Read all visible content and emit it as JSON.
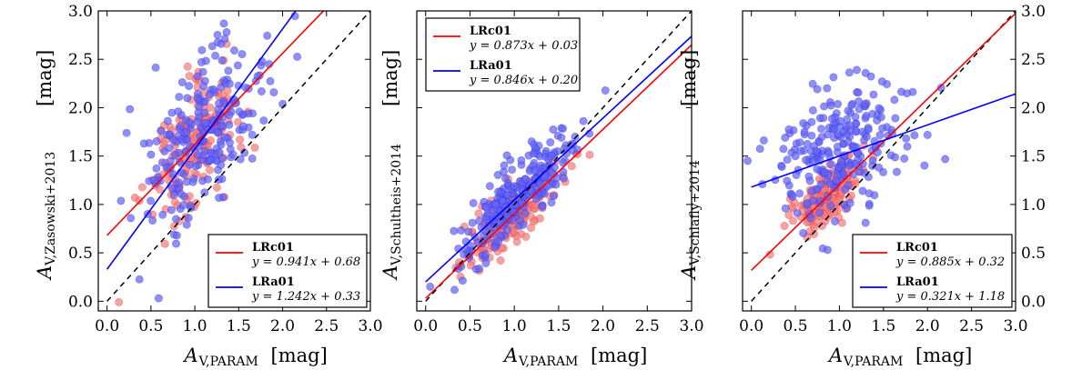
{
  "chart_data": [
    {
      "type": "scatter",
      "title": "",
      "xlabel": {
        "main": "A",
        "sub": "V,PARAM",
        "unit": "[mag]"
      },
      "ylabel": {
        "main": "A",
        "sub": "V,Zasowski+2013",
        "unit": "[mag]"
      },
      "xlim": [
        -0.1,
        3.0
      ],
      "ylim": [
        -0.1,
        3.0
      ],
      "xticks": [
        "0.0",
        "0.5",
        "1.0",
        "1.5",
        "2.0",
        "2.5",
        "3.0"
      ],
      "yticks": [
        "0.0",
        "0.5",
        "1.0",
        "1.5",
        "2.0",
        "2.5",
        "3.0"
      ],
      "ytick_side": "left",
      "legend": "bottom-right",
      "one_to_one": true,
      "series": [
        {
          "name": "LRc01",
          "equation": "y = 0.941x + 0.68",
          "slope": 0.941,
          "intercept": 0.68,
          "color": "#ff0000",
          "fill": "#f08080",
          "cx": 0.95,
          "cy": 1.55,
          "sx": 0.25,
          "sy": 0.38,
          "r": 0.6,
          "n": 170,
          "x_range": [
            0,
            2.5
          ]
        },
        {
          "name": "LRa01",
          "equation": "y = 1.242x + 0.33",
          "slope": 1.242,
          "intercept": 0.33,
          "color": "#0000ff",
          "fill": "#6464f0",
          "cx": 1.1,
          "cy": 1.75,
          "sx": 0.34,
          "sy": 0.46,
          "r": 0.55,
          "n": 230,
          "x_range": [
            0,
            2.17
          ]
        }
      ]
    },
    {
      "type": "scatter",
      "title": "",
      "xlabel": {
        "main": "A",
        "sub": "V,PARAM",
        "unit": "[mag]"
      },
      "ylabel": {
        "main": "A",
        "sub": "V,Schultheis+2014",
        "unit": "[mag]"
      },
      "xlim": [
        -0.1,
        3.0
      ],
      "ylim": [
        -0.1,
        3.0
      ],
      "xticks": [
        "0.0",
        "0.5",
        "1.0",
        "1.5",
        "2.0",
        "2.5",
        "3.0"
      ],
      "yticks": [],
      "ytick_side": "none",
      "legend": "top-left",
      "one_to_one": true,
      "series": [
        {
          "name": "LRc01",
          "equation": "y = 0.873x + 0.03",
          "slope": 0.873,
          "intercept": 0.03,
          "color": "#ff0000",
          "fill": "#f08080",
          "cx": 1.0,
          "cy": 0.9,
          "sx": 0.25,
          "sy": 0.25,
          "r": 0.8,
          "n": 200,
          "x_range": [
            0,
            3.0
          ]
        },
        {
          "name": "LRa01",
          "equation": "y = 0.846x + 0.20",
          "slope": 0.846,
          "intercept": 0.2,
          "color": "#0000ff",
          "fill": "#6464f0",
          "cx": 1.05,
          "cy": 1.1,
          "sx": 0.33,
          "sy": 0.33,
          "r": 0.85,
          "n": 260,
          "x_range": [
            0,
            3.0
          ]
        }
      ]
    },
    {
      "type": "scatter",
      "title": "",
      "xlabel": {
        "main": "A",
        "sub": "V,PARAM",
        "unit": "[mag]"
      },
      "ylabel": {
        "main": "A",
        "sub": "V,Schlafly+2014",
        "unit": "[mag]"
      },
      "xlim": [
        -0.1,
        3.0
      ],
      "ylim": [
        -0.1,
        3.0
      ],
      "xticks": [
        "0.0",
        "0.5",
        "1.0",
        "1.5",
        "2.0",
        "2.5",
        "3.0"
      ],
      "yticks": [
        "0.0",
        "0.5",
        "1.0",
        "1.5",
        "2.0",
        "2.5",
        "3.0"
      ],
      "ytick_side": "right",
      "legend": "bottom-right",
      "one_to_one": true,
      "series": [
        {
          "name": "LRc01",
          "equation": "y = 0.885x + 0.32",
          "slope": 0.885,
          "intercept": 0.32,
          "color": "#ff0000",
          "fill": "#f08080",
          "cx": 0.85,
          "cy": 1.08,
          "sx": 0.2,
          "sy": 0.2,
          "r": 0.75,
          "n": 170,
          "x_range": [
            0,
            3.0
          ]
        },
        {
          "name": "LRa01",
          "equation": "y = 0.321x + 1.18",
          "slope": 0.321,
          "intercept": 1.18,
          "color": "#0000ff",
          "fill": "#6464f0",
          "cx": 1.0,
          "cy": 1.55,
          "sx": 0.35,
          "sy": 0.35,
          "r": 0.3,
          "n": 250,
          "x_range": [
            0,
            3.0
          ]
        }
      ]
    }
  ]
}
